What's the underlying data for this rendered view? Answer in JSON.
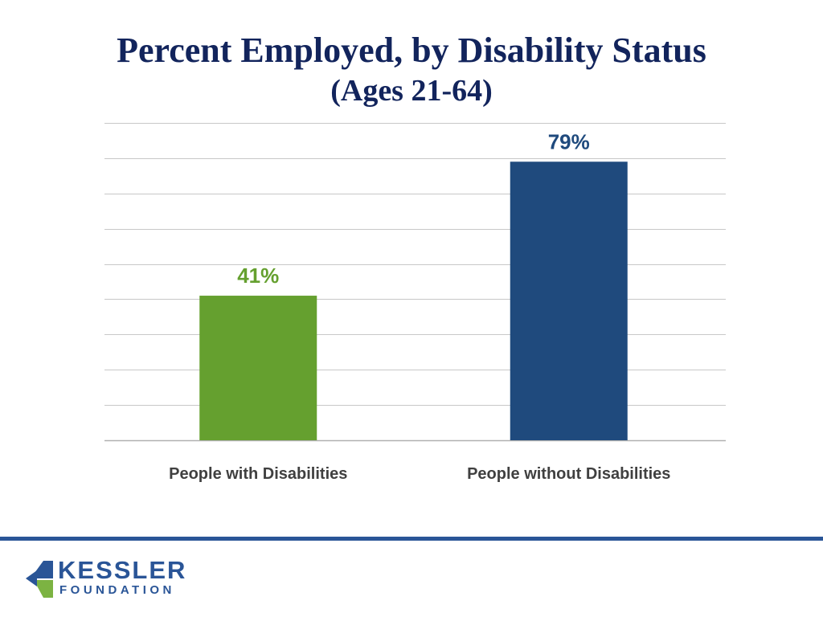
{
  "title": {
    "line1": "Percent Employed, by Disability Status",
    "line2": "(Ages 21-64)"
  },
  "colors": {
    "title": "#12245c",
    "gridline": "#c8c8c8",
    "axis": "#b0b0b0",
    "tick_text": "#404040",
    "footer_rule": "#2a5597",
    "logo_blue": "#2a5597",
    "logo_green": "#7cb342"
  },
  "chart_data": {
    "type": "bar",
    "title": "Percent Employed, by Disability Status (Ages 21-64)",
    "categories": [
      "People with Disabilities",
      "People without Disabilities"
    ],
    "values": [
      41,
      79
    ],
    "value_labels": [
      "41%",
      "79%"
    ],
    "bar_colors": [
      "#65a02f",
      "#1f4a7d"
    ],
    "label_colors": [
      "#65a02f",
      "#1f4a7d"
    ],
    "ylim": [
      0,
      90
    ],
    "gridline_step": 10,
    "grid": true,
    "xlabel": "",
    "ylabel": ""
  },
  "logo": {
    "name": "KESSLER",
    "sub": "FOUNDATION"
  }
}
